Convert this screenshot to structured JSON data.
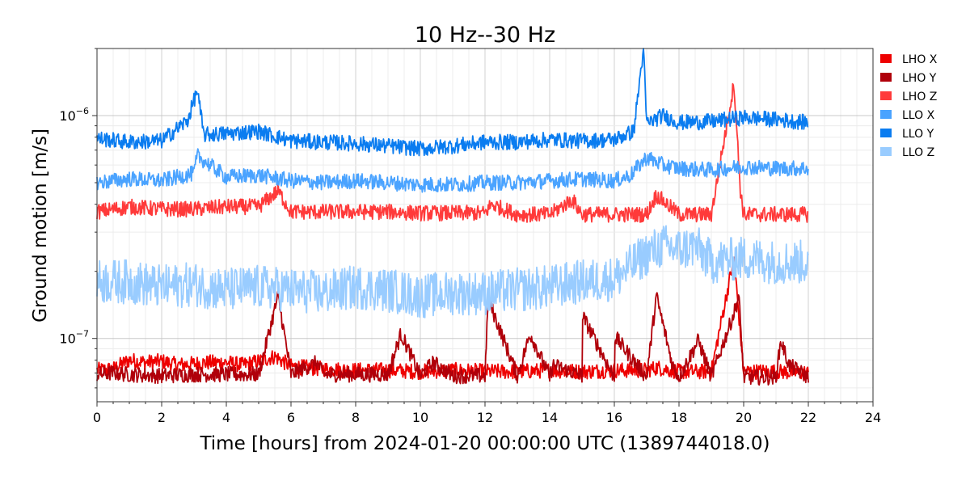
{
  "chart_data": {
    "type": "line",
    "title": "10 Hz--30 Hz",
    "xlabel": "Time [hours] from 2024-01-20 00:00:00 UTC (1389744018.0)",
    "ylabel": "Ground motion [m/s]",
    "xlim": [
      0,
      24
    ],
    "ylim": [
      5.2e-08,
      2e-06
    ],
    "yscale": "log",
    "grid": true,
    "legend_position": "outside-top-right",
    "x_ticks": [
      0,
      2,
      4,
      6,
      8,
      10,
      12,
      14,
      16,
      18,
      20,
      22,
      24
    ],
    "x_tick_labels": [
      "0",
      "2",
      "4",
      "6",
      "8",
      "10",
      "12",
      "14",
      "16",
      "18",
      "20",
      "22",
      "24"
    ],
    "y_ticks": [
      1e-07,
      1e-06
    ],
    "y_tick_labels": [
      {
        "base": "10",
        "exp": "−7"
      },
      {
        "base": "10",
        "exp": "−6"
      }
    ],
    "series": [
      {
        "name": "LHO X",
        "color": "#ee0000",
        "x": [
          0,
          0.5,
          1,
          1.5,
          2,
          2.5,
          3,
          3.5,
          4,
          4.5,
          5,
          5.5,
          6,
          7,
          8,
          9,
          10,
          11,
          12,
          13,
          14,
          15,
          16,
          17,
          17.3,
          18,
          19,
          19.7,
          20,
          21,
          22
        ],
        "y": [
          7.2e-08,
          7.3e-08,
          8e-08,
          7.8e-08,
          7.9e-08,
          7.6e-08,
          7.7e-08,
          7.8e-08,
          7.8e-08,
          7.6e-08,
          7.9e-08,
          8.3e-08,
          7.5e-08,
          7.3e-08,
          7.2e-08,
          7.2e-08,
          7.1e-08,
          7.2e-08,
          7.1e-08,
          7.1e-08,
          7.2e-08,
          7.1e-08,
          7.2e-08,
          7.2e-08,
          7.4e-08,
          7.1e-08,
          7.1e-08,
          2.3e-07,
          7.1e-08,
          7.1e-08,
          7e-08
        ]
      },
      {
        "name": "LHO Y",
        "color": "#b0000a",
        "x": [
          0,
          0.5,
          1,
          2,
          3,
          4,
          5,
          5.6,
          6,
          6.8,
          7,
          8,
          9,
          9.4,
          10,
          10.4,
          11,
          12,
          12.1,
          13,
          13.4,
          14,
          14.1,
          15,
          14.7,
          16,
          15.95,
          17,
          17.3,
          17.8,
          18,
          18.6,
          19,
          19.7,
          19.85,
          20,
          21,
          21.15,
          21.4,
          22
        ],
        "y": [
          6.9e-08,
          7e-08,
          6.9e-08,
          6.8e-08,
          6.9e-08,
          6.9e-08,
          6.9e-08,
          1.55e-07,
          6.9e-08,
          7.8e-08,
          6.9e-08,
          6.9e-08,
          6.9e-08,
          1.05e-07,
          6.8e-08,
          7.8e-08,
          6.8e-08,
          6.8e-08,
          1.5e-07,
          6.8e-08,
          1.05e-07,
          6.7e-08,
          7.6e-08,
          6.8e-08,
          1.55e-07,
          6.7e-08,
          1.05e-07,
          6.7e-08,
          1.55e-07,
          7.6e-08,
          6.7e-08,
          9.8e-08,
          6.7e-08,
          1.3e-07,
          1.55e-07,
          6.7e-08,
          6.7e-08,
          9.8e-08,
          7.6e-08,
          6.7e-08
        ]
      },
      {
        "name": "LHO Z",
        "color": "#ff3a3a",
        "x": [
          0,
          1,
          2,
          3,
          4,
          5,
          5.6,
          6,
          7,
          8,
          9,
          10,
          11,
          12,
          12.2,
          13,
          14,
          14.7,
          15,
          16,
          17,
          17.3,
          18,
          19,
          19.7,
          19.9,
          20,
          21,
          22
        ],
        "y": [
          3.7e-07,
          3.9e-07,
          3.8e-07,
          3.8e-07,
          3.9e-07,
          3.9e-07,
          4.6e-07,
          3.7e-07,
          3.7e-07,
          3.7e-07,
          3.7e-07,
          3.65e-07,
          3.65e-07,
          3.65e-07,
          4e-07,
          3.6e-07,
          3.6e-07,
          4.2e-07,
          3.6e-07,
          3.6e-07,
          3.6e-07,
          4.4e-07,
          3.6e-07,
          3.6e-07,
          1.4e-06,
          4.6e-07,
          3.6e-07,
          3.6e-07,
          3.6e-07
        ]
      },
      {
        "name": "LLO X",
        "color": "#4aa3ff",
        "x": [
          0,
          1,
          2,
          3,
          3.1,
          4,
          5,
          6,
          7,
          8,
          9,
          10,
          11,
          12,
          13,
          14,
          15,
          16,
          16.5,
          17,
          17.5,
          18,
          19,
          20,
          21,
          22
        ],
        "y": [
          5e-07,
          5.2e-07,
          5.1e-07,
          5.5e-07,
          6.6e-07,
          5.3e-07,
          5.4e-07,
          5.1e-07,
          5e-07,
          5.1e-07,
          5e-07,
          4.9e-07,
          4.9e-07,
          5e-07,
          5e-07,
          5.1e-07,
          5.2e-07,
          5.1e-07,
          5.4e-07,
          6.5e-07,
          6e-07,
          5.8e-07,
          5.7e-07,
          5.9e-07,
          5.8e-07,
          5.8e-07
        ]
      },
      {
        "name": "LLO Y",
        "color": "#0a7cf0",
        "x": [
          0,
          1,
          2,
          2.8,
          3.1,
          3.3,
          4,
          5,
          6,
          7,
          8,
          9,
          10,
          11,
          12,
          13,
          14,
          15,
          16,
          16.6,
          16.9,
          17,
          17.5,
          18,
          19,
          20,
          21,
          22
        ],
        "y": [
          7.9e-07,
          7.6e-07,
          7.7e-07,
          9.5e-07,
          1.3e-06,
          8.2e-07,
          8.3e-07,
          8.5e-07,
          7.7e-07,
          7.6e-07,
          7.5e-07,
          7.3e-07,
          7.1e-07,
          7.3e-07,
          7.6e-07,
          7.6e-07,
          7.8e-07,
          7.7e-07,
          7.8e-07,
          8.5e-07,
          2e-06,
          9.2e-07,
          1e-06,
          9.3e-07,
          9.4e-07,
          9.8e-07,
          9.6e-07,
          9.3e-07
        ]
      },
      {
        "name": "LLO Z",
        "color": "#99ccff",
        "x": [
          0,
          1,
          2,
          3,
          4,
          5,
          6,
          7,
          8,
          9,
          10,
          11,
          12,
          13,
          14,
          15,
          16,
          16.5,
          17,
          17.5,
          18,
          18.5,
          19,
          20,
          21,
          22
        ],
        "y": [
          1.8e-07,
          1.8e-07,
          1.7e-07,
          1.75e-07,
          1.65e-07,
          1.7e-07,
          1.65e-07,
          1.6e-07,
          1.7e-07,
          1.65e-07,
          1.55e-07,
          1.6e-07,
          1.6e-07,
          1.65e-07,
          1.7e-07,
          1.8e-07,
          1.85e-07,
          2.1e-07,
          2.4e-07,
          2.6e-07,
          2.5e-07,
          2.6e-07,
          2.2e-07,
          2.3e-07,
          2.2e-07,
          2.2e-07
        ]
      }
    ]
  }
}
